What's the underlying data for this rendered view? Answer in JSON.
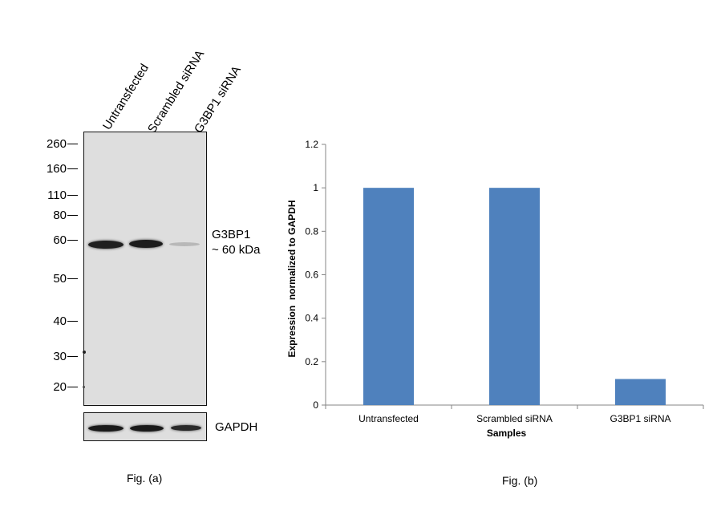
{
  "blot": {
    "lanes": [
      "Untransfected",
      "Scrambled siRNA",
      "G3BP1 siRNA"
    ],
    "markers": [
      "260",
      "160",
      "110",
      "80",
      "60",
      "50",
      "40",
      "30",
      "20"
    ],
    "target_label_line1": "G3BP1",
    "target_label_line2": "~ 60 kDa",
    "loading_control_label": "GAPDH"
  },
  "captions": {
    "fig_a": "Fig. (a)",
    "fig_b": "Fig. (b)"
  },
  "chart_data": {
    "type": "bar",
    "categories": [
      "Untransfected",
      "Scrambled siRNA",
      "G3BP1 siRNA"
    ],
    "values": [
      1.0,
      1.0,
      0.12
    ],
    "ylim": [
      0,
      1.2
    ],
    "yticks": [
      "0",
      "0.2",
      "0.4",
      "0.6",
      "0.8",
      "1",
      "1.2"
    ],
    "xlabel": "Samples",
    "ylabel": "Expression  normalized to GAPDH",
    "grid": false,
    "bar_color": "#4f81bd"
  }
}
